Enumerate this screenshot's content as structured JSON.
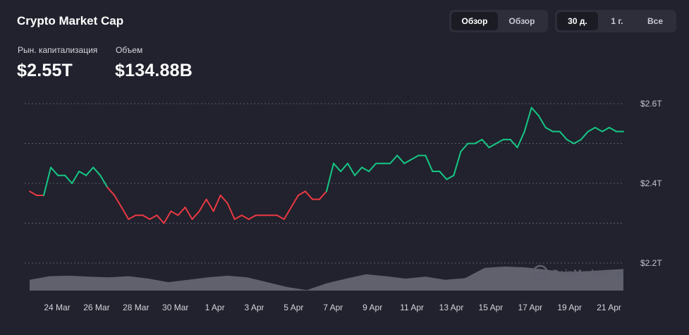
{
  "header": {
    "title": "Crypto Market Cap",
    "view_tabs": [
      {
        "label": "Обзор",
        "active": true
      },
      {
        "label": "Обзор",
        "active": false
      }
    ],
    "range_tabs": [
      {
        "label": "30 д.",
        "active": true
      },
      {
        "label": "1 г.",
        "active": false
      },
      {
        "label": "Все",
        "active": false
      }
    ]
  },
  "metrics": {
    "market_cap_label": "Рын. капитализация",
    "market_cap_value": "$2.55T",
    "volume_label": "Объем",
    "volume_value": "$134.88B"
  },
  "watermark": "CoinMarketCap",
  "colors": {
    "background": "#21222d",
    "up": "#16c784",
    "down": "#ea3943",
    "volume": "#6b6c78",
    "grid": "#5a5b66"
  },
  "chart_data": {
    "type": "line",
    "x_ticks": [
      "24 Mar",
      "26 Mar",
      "28 Mar",
      "30 Mar",
      "1 Apr",
      "3 Apr",
      "5 Apr",
      "7 Apr",
      "9 Apr",
      "11 Apr",
      "13 Apr",
      "15 Apr",
      "17 Apr",
      "19 Apr",
      "21 Apr"
    ],
    "y_ticks": [
      "$2.2T",
      "$2.4T",
      "$2.6T"
    ],
    "ylim": [
      2.2,
      2.6
    ],
    "y_unit": "T",
    "baseline": 2.4,
    "color_rule": "green above baseline, red below",
    "grid": true,
    "series": [
      {
        "x": [
          "Mar 23",
          "Mar 23",
          "Mar 23",
          "Mar 24",
          "Mar 24",
          "Mar 25",
          "Mar 25",
          "Mar 25",
          "Mar 26",
          "Mar 26",
          "Mar 27",
          "Mar 27",
          "Mar 27",
          "Mar 28",
          "Mar 28",
          "Mar 28",
          "Mar 29",
          "Mar 29",
          "Mar 30",
          "Mar 30",
          "Mar 30",
          "Mar 31",
          "Mar 31",
          "Mar 31",
          "Apr 1",
          "Apr 1",
          "Apr 1",
          "Apr 2",
          "Apr 2",
          "Apr 3",
          "Apr 3",
          "Apr 4",
          "Apr 4",
          "Apr 4",
          "Apr 5",
          "Apr 5",
          "Apr 6",
          "Apr 6",
          "Apr 6",
          "Apr 7",
          "Apr 7",
          "Apr 7",
          "Apr 8",
          "Apr 8",
          "Apr 8",
          "Apr 8",
          "Apr 9",
          "Apr 9",
          "Apr 10",
          "Apr 10",
          "Apr 10",
          "Apr 11",
          "Apr 11",
          "Apr 11",
          "Apr 12",
          "Apr 12",
          "Apr 12",
          "Apr 13",
          "Apr 13",
          "Apr 13",
          "Apr 14",
          "Apr 14",
          "Apr 14",
          "Apr 15",
          "Apr 15",
          "Apr 15",
          "Apr 16",
          "Apr 16",
          "Apr 16",
          "Apr 17",
          "Apr 17",
          "Apr 17",
          "Apr 18",
          "Apr 18",
          "Apr 18",
          "Apr 19",
          "Apr 19",
          "Apr 19",
          "Apr 20",
          "Apr 20",
          "Apr 20",
          "Apr 21",
          "Apr 21",
          "Apr 21",
          "Apr 22"
        ],
        "values": [
          2.38,
          2.37,
          2.37,
          2.44,
          2.42,
          2.42,
          2.4,
          2.43,
          2.42,
          2.44,
          2.42,
          2.39,
          2.37,
          2.34,
          2.31,
          2.32,
          2.32,
          2.31,
          2.32,
          2.3,
          2.33,
          2.32,
          2.34,
          2.31,
          2.33,
          2.36,
          2.33,
          2.37,
          2.35,
          2.31,
          2.32,
          2.31,
          2.32,
          2.32,
          2.32,
          2.32,
          2.31,
          2.34,
          2.37,
          2.38,
          2.36,
          2.36,
          2.38,
          2.45,
          2.43,
          2.45,
          2.42,
          2.44,
          2.43,
          2.45,
          2.45,
          2.45,
          2.47,
          2.45,
          2.46,
          2.47,
          2.47,
          2.43,
          2.43,
          2.41,
          2.42,
          2.48,
          2.5,
          2.5,
          2.51,
          2.49,
          2.5,
          2.51,
          2.51,
          2.49,
          2.53,
          2.59,
          2.57,
          2.54,
          2.53,
          2.53,
          2.51,
          2.5,
          2.51,
          2.53,
          2.54,
          2.53,
          2.54,
          2.53,
          2.53
        ]
      }
    ],
    "volume": {
      "x": [
        "Mar 23",
        "Mar 24",
        "Mar 25",
        "Mar 26",
        "Mar 27",
        "Mar 28",
        "Mar 29",
        "Mar 30",
        "Mar 31",
        "Apr 1",
        "Apr 2",
        "Apr 3",
        "Apr 4",
        "Apr 5",
        "Apr 6",
        "Apr 7",
        "Apr 8",
        "Apr 9",
        "Apr 10",
        "Apr 11",
        "Apr 12",
        "Apr 13",
        "Apr 14",
        "Apr 15",
        "Apr 16",
        "Apr 17",
        "Apr 18",
        "Apr 19",
        "Apr 20",
        "Apr 21",
        "Apr 22"
      ],
      "values": [
        0.45,
        0.6,
        0.62,
        0.58,
        0.55,
        0.6,
        0.5,
        0.35,
        0.45,
        0.55,
        0.62,
        0.55,
        0.35,
        0.15,
        0.02,
        0.3,
        0.5,
        0.68,
        0.6,
        0.5,
        0.58,
        0.45,
        0.52,
        0.95,
        1.0,
        0.97,
        0.88,
        0.78,
        0.8,
        0.85,
        0.9
      ]
    }
  }
}
